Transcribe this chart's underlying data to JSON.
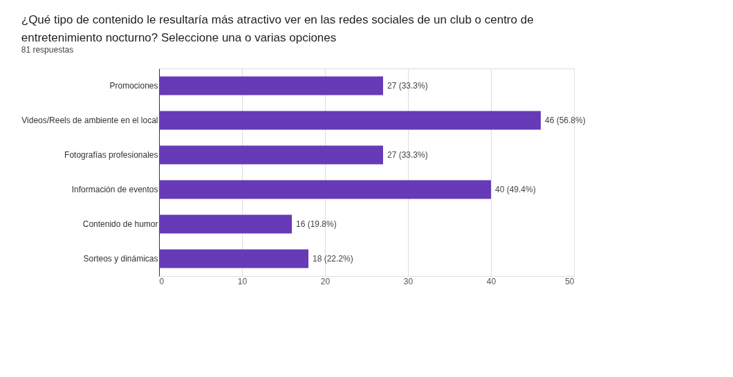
{
  "chart_data": {
    "type": "bar",
    "orientation": "horizontal",
    "title": "¿Qué tipo de contenido le resultaría más atractivo ver en las redes sociales de un club o centro de entretenimiento nocturno? Seleccione una o varias opciones",
    "subtitle": "81 respuestas",
    "categories": [
      "Promociones",
      "Videos/Reels de ambiente en el local",
      "Fotografías profesionales",
      "Información de eventos",
      "Contenido de humor",
      "Sorteos y dinámicas"
    ],
    "values": [
      27,
      46,
      27,
      40,
      16,
      18
    ],
    "value_labels": [
      "27 (33.3%)",
      "46 (56.8%)",
      "27 (33.3%)",
      "40 (49.4%)",
      "16 (19.8%)",
      "18 (22.2%)"
    ],
    "color": "#673ab7",
    "xlim": [
      0,
      50
    ],
    "xticks": [
      0,
      10,
      20,
      30,
      40,
      50
    ],
    "grid": "x"
  }
}
